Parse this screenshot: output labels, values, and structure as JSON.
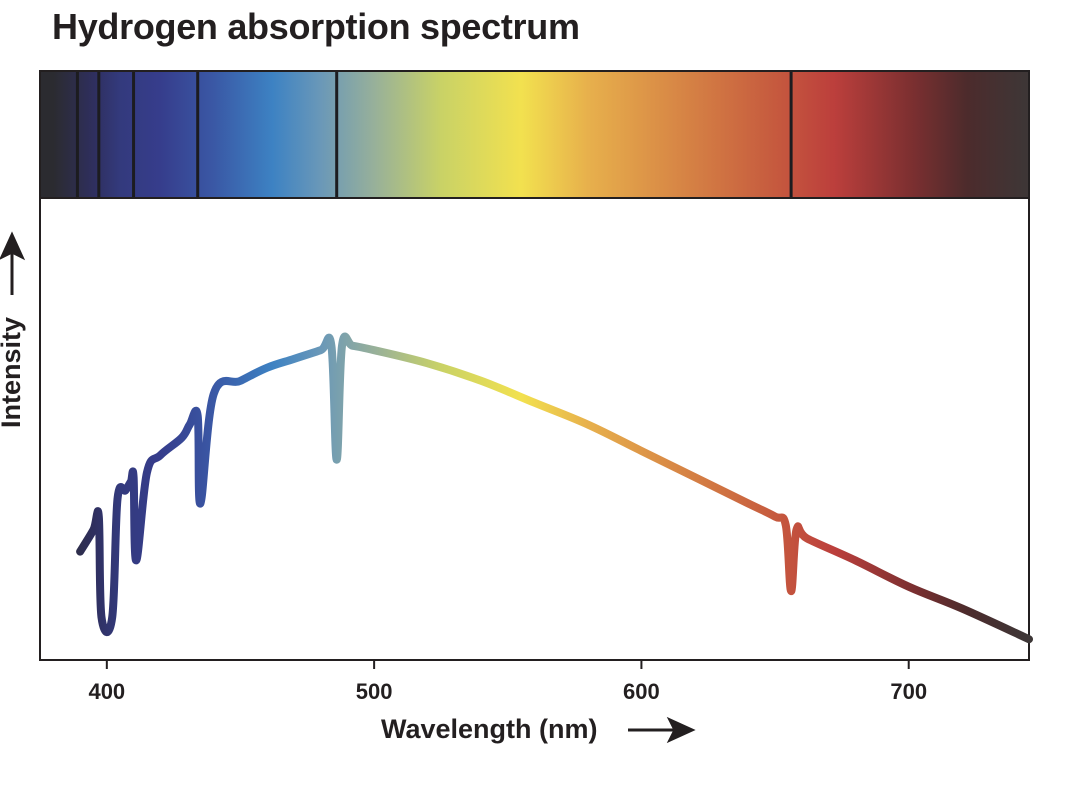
{
  "title": "Hydrogen absorption spectrum",
  "chart_data": {
    "type": "line",
    "title": "Hydrogen absorption spectrum",
    "xlabel": "Wavelength (nm)",
    "ylabel": "Intensity",
    "xlim": [
      375,
      745
    ],
    "ylim": [
      0,
      1
    ],
    "x_ticks": [
      400,
      500,
      600,
      700
    ],
    "y_scale": "relative (no tick values shown)",
    "grid": false,
    "legend": "none",
    "absorption_lines_nm": [
      389,
      397,
      410,
      434,
      486,
      656
    ],
    "series": [
      {
        "x": [
          390,
          395,
          397,
          398,
          402,
          404,
          407,
          409,
          410,
          411,
          415,
          420,
          428,
          431,
          434,
          435,
          440,
          450,
          460,
          470,
          480,
          484,
          486,
          488,
          492,
          500,
          520,
          540,
          560,
          580,
          600,
          620,
          640,
          650,
          654,
          656,
          658,
          662,
          680,
          700,
          720,
          745
        ],
        "y": [
          0.22,
          0.27,
          0.3,
          0.07,
          0.07,
          0.34,
          0.36,
          0.38,
          0.39,
          0.2,
          0.4,
          0.44,
          0.48,
          0.51,
          0.53,
          0.33,
          0.58,
          0.61,
          0.64,
          0.66,
          0.68,
          0.69,
          0.43,
          0.69,
          0.69,
          0.68,
          0.65,
          0.61,
          0.56,
          0.51,
          0.45,
          0.39,
          0.33,
          0.3,
          0.28,
          0.13,
          0.27,
          0.25,
          0.2,
          0.14,
          0.09,
          0.02
        ]
      }
    ]
  },
  "colors": {
    "axes": "#231f20",
    "gradient_stops": [
      {
        "nm": 380,
        "color": "#2b2b30"
      },
      {
        "nm": 395,
        "color": "#2f2f5e"
      },
      {
        "nm": 405,
        "color": "#333a7d"
      },
      {
        "nm": 420,
        "color": "#363d8c"
      },
      {
        "nm": 440,
        "color": "#3a58a5"
      },
      {
        "nm": 462,
        "color": "#3d82c3"
      },
      {
        "nm": 480,
        "color": "#6a98b8"
      },
      {
        "nm": 500,
        "color": "#97b09a"
      },
      {
        "nm": 525,
        "color": "#c9d266"
      },
      {
        "nm": 555,
        "color": "#f2e14f"
      },
      {
        "nm": 580,
        "color": "#e7b04c"
      },
      {
        "nm": 610,
        "color": "#d98b46"
      },
      {
        "nm": 645,
        "color": "#c8603f"
      },
      {
        "nm": 672,
        "color": "#bc3f3c"
      },
      {
        "nm": 702,
        "color": "#7a2f30"
      },
      {
        "nm": 722,
        "color": "#4c2b2c"
      },
      {
        "nm": 745,
        "color": "#3d3737"
      }
    ]
  }
}
